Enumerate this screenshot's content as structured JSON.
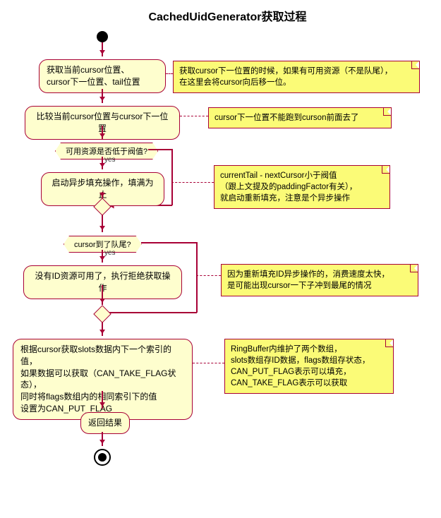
{
  "title": "CachedUidGenerator获取过程",
  "colors": {
    "node_fill": "#fefece",
    "node_border": "#a80036",
    "note_fill": "#fbfb77",
    "arrow": "#a80036",
    "background": "#ffffff"
  },
  "fonts": {
    "title_size": 16,
    "node_size": 12,
    "note_size": 11.5,
    "decision_size": 11
  },
  "nodes": {
    "act1": "获取当前cursor位置、\ncursor下一位置、tail位置",
    "act2": "比较当前cursor位置与cursor下一位置",
    "dec1": "可用资源是否低于阀值?",
    "act3": "启动异步填充操作，填满为止",
    "dec2": "cursor到了队尾?",
    "act4": "没有ID资源可用了，执行拒绝获取操作",
    "act5": "根据cursor获取slots数据内下一个索引的值，\n如果数据可以获取（CAN_TAKE_FLAG状态），\n同时将flags数组内的相同索引下的值\n设置为CAN_PUT_FLAG",
    "act6": "返回结果"
  },
  "notes": {
    "n1": "获取cursor下一位置的时候，如果有可用资源（不是队尾），\n在这里会将cursor向后移一位。",
    "n2": "cursor下一位置不能跑到curson前面去了",
    "n3": "currentTail - nextCursor小于阀值\n（跟上文提及的paddingFactor有关），\n就启动重新填充，注意是个异步操作",
    "n4": "因为重新填充ID异步操作的，消费速度太快，\n是可能出现cursor一下子冲到最尾的情况",
    "n5": "RingBuffer内维护了两个数组，\nslots数组存ID数据，flags数组存状态，\nCAN_PUT_FLAG表示可以填充，\nCAN_TAKE_FLAG表示可以获取"
  },
  "labels": {
    "yes": "yes"
  }
}
